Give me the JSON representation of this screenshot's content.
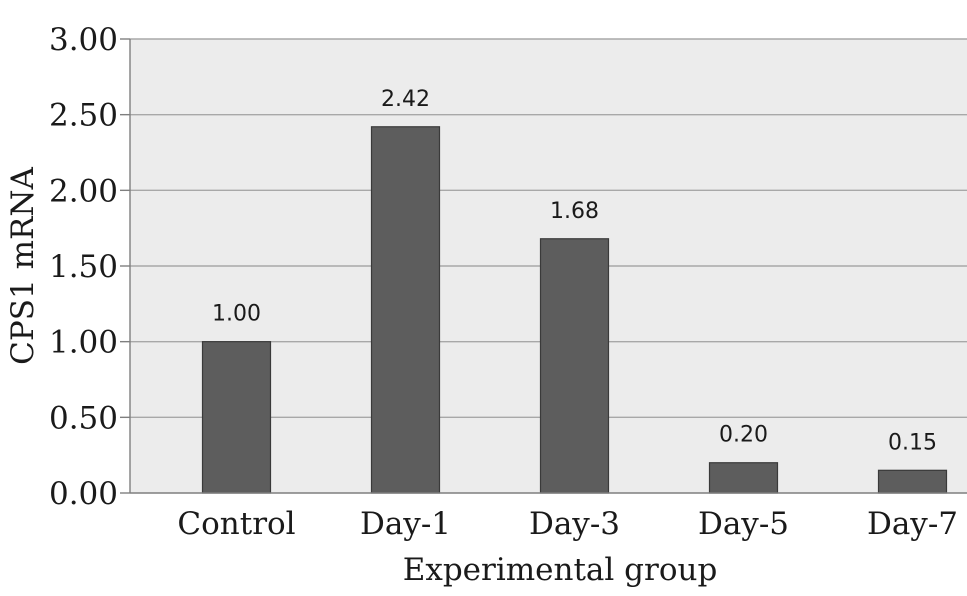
{
  "chart_data": {
    "type": "bar",
    "categories": [
      "Control",
      "Day-1",
      "Day-3",
      "Day-5",
      "Day-7"
    ],
    "series": [
      {
        "values": [
          1.0,
          2.42,
          1.68,
          0.2,
          0.15
        ]
      }
    ],
    "data_labels": [
      "1.00",
      "2.42",
      "1.68",
      "0.20",
      "0.15"
    ],
    "title": "",
    "xlabel": "Experimental group",
    "ylabel": "CPS1 mRNA",
    "ylim": [
      0,
      3
    ],
    "yticks": [
      0,
      0.5,
      1.0,
      1.5,
      2.0,
      2.5,
      3.0
    ],
    "ytick_labels": [
      "0.00",
      "0.50",
      "1.00",
      "1.50",
      "2.00",
      "2.50",
      "3.00"
    ],
    "grid": true,
    "legend": "none",
    "colors": {
      "plot_background": "#ececec",
      "bar_fill": "#5d5d5d",
      "bar_edge": "#3a3a3a",
      "gridline": "#a8a8a8"
    }
  }
}
